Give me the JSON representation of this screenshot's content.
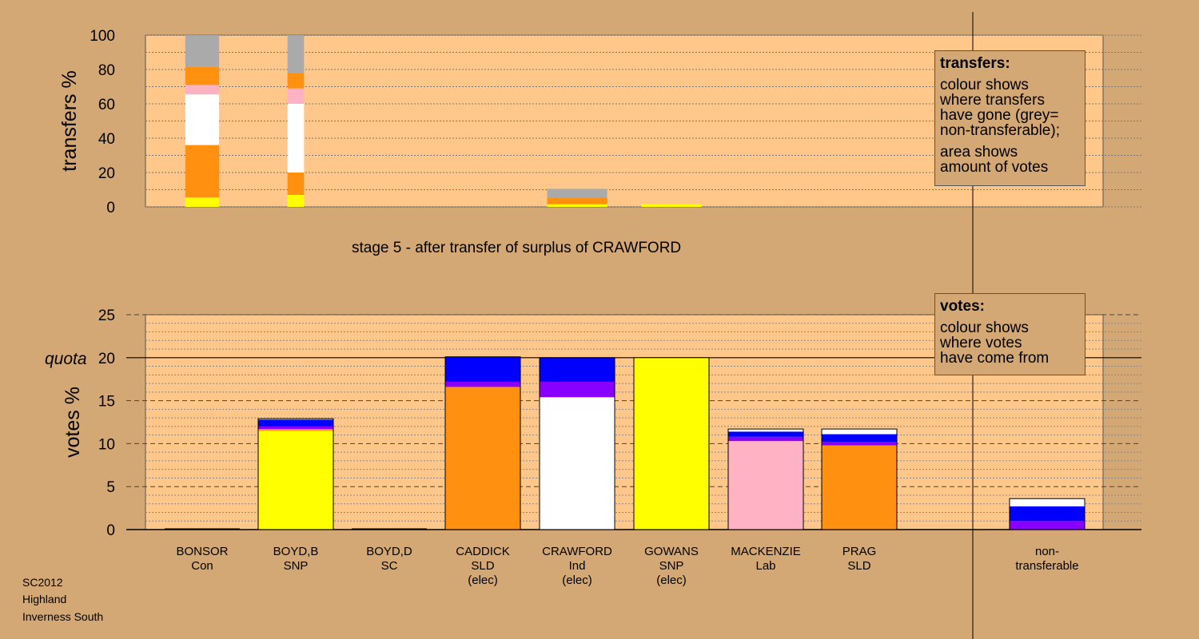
{
  "stage_label": "stage 5 - after transfer of surplus of CRAWFORD",
  "footer": [
    "SC2012",
    "Highland",
    "Inverness South"
  ],
  "legend_transfers": {
    "title": "transfers:",
    "lines": [
      "colour shows",
      "where transfers",
      "have gone (grey=",
      "non-transferable);"
    ],
    "lines2": [
      "area shows",
      "amount of votes"
    ]
  },
  "legend_votes": {
    "title": "votes:",
    "lines": [
      "colour shows",
      "where votes",
      "have come from"
    ]
  },
  "colors": {
    "plot_bg": "#ffc88a",
    "page_bg": "#d4a874",
    "SNP": "#ffff00",
    "SLD": "#ff9010",
    "Ind": "#ffffff",
    "Lab": "#ffb2c4",
    "Con": "#0000ff",
    "SC": "#8800ff",
    "nontransferable": "#aaaaaa"
  },
  "chart_data": [
    {
      "type": "bar",
      "stacked": true,
      "ylabel": "transfers %",
      "ylim": [
        0,
        100
      ],
      "yticks": [
        0,
        20,
        40,
        60,
        80,
        100
      ],
      "categories": [
        "BONSOR",
        "BOYD,B",
        "BOYD,D",
        "CADDICK",
        "CRAWFORD",
        "GOWANS",
        "MACKENZIE",
        "PRAG"
      ],
      "bar_width": [
        0.45,
        0.22,
        0,
        0,
        0.8,
        0.8,
        0,
        0
      ],
      "series": [
        {
          "color": "#ffff00",
          "values": [
            5.5,
            7,
            0,
            0,
            1.5,
            1.5,
            0,
            0
          ]
        },
        {
          "color": "#ff9010",
          "values": [
            30.5,
            13,
            0,
            0,
            1.5,
            0,
            0,
            0
          ]
        },
        {
          "color": "#ffffff",
          "values": [
            29.5,
            40,
            0,
            0,
            0,
            0,
            0,
            0
          ]
        },
        {
          "color": "#ffb2c4",
          "values": [
            5.5,
            9,
            0,
            0,
            0,
            0,
            0,
            0
          ]
        },
        {
          "color": "#ff9010",
          "values": [
            10.5,
            9,
            0,
            0,
            2.5,
            0,
            0,
            0
          ]
        },
        {
          "color": "#aaaaaa",
          "values": [
            18.5,
            22,
            0,
            0,
            5,
            0,
            0,
            0
          ]
        }
      ]
    },
    {
      "type": "bar",
      "stacked": true,
      "ylabel": "votes %",
      "ylim": [
        0,
        25
      ],
      "yticks": [
        0,
        5,
        10,
        15,
        20,
        25
      ],
      "quota": 20,
      "quota_label": "quota",
      "categories": [
        "BONSOR",
        "BOYD,B",
        "BOYD,D",
        "CADDICK",
        "CRAWFORD",
        "GOWANS",
        "MACKENZIE",
        "PRAG",
        "non-transferable"
      ],
      "category_labels": [
        [
          "BONSOR",
          "Con"
        ],
        [
          "BOYD,B",
          "SNP"
        ],
        [
          "BOYD,D",
          "SC"
        ],
        [
          "CADDICK",
          "SLD",
          "(elec)"
        ],
        [
          "CRAWFORD",
          "Ind",
          "(elec)"
        ],
        [
          "GOWANS",
          "SNP",
          "(elec)"
        ],
        [
          "MACKENZIE",
          "Lab"
        ],
        [
          "PRAG",
          "SLD"
        ],
        [
          "non-",
          "transferable"
        ]
      ],
      "stacks": [
        [],
        [
          {
            "color": "#ffff00",
            "value": 11.5
          },
          {
            "color": "#ff9010",
            "value": 0.2
          },
          {
            "color": "#8800ff",
            "value": 0.3
          },
          {
            "color": "#0000ff",
            "value": 0.8
          },
          {
            "color": "#ffffff",
            "value": 0.1
          }
        ],
        [],
        [
          {
            "color": "#ff9010",
            "value": 16.6
          },
          {
            "color": "#8800ff",
            "value": 0.6
          },
          {
            "color": "#0000ff",
            "value": 2.9
          }
        ],
        [
          {
            "color": "#ffffff",
            "value": 15.4
          },
          {
            "color": "#8800ff",
            "value": 1.8
          },
          {
            "color": "#0000ff",
            "value": 2.8
          }
        ],
        [
          {
            "color": "#ffff00",
            "value": 20
          }
        ],
        [
          {
            "color": "#ffb2c4",
            "value": 10.3
          },
          {
            "color": "#8800ff",
            "value": 0.5
          },
          {
            "color": "#0000ff",
            "value": 0.6
          },
          {
            "color": "#ffffff",
            "value": 0.3
          }
        ],
        [
          {
            "color": "#ff9010",
            "value": 9.8
          },
          {
            "color": "#8800ff",
            "value": 0.4
          },
          {
            "color": "#0000ff",
            "value": 0.9
          },
          {
            "color": "#ffffff",
            "value": 0.6
          }
        ],
        [
          {
            "color": "#8800ff",
            "value": 1.0
          },
          {
            "color": "#0000ff",
            "value": 1.7
          },
          {
            "color": "#ffffff",
            "value": 0.9
          }
        ]
      ]
    }
  ]
}
